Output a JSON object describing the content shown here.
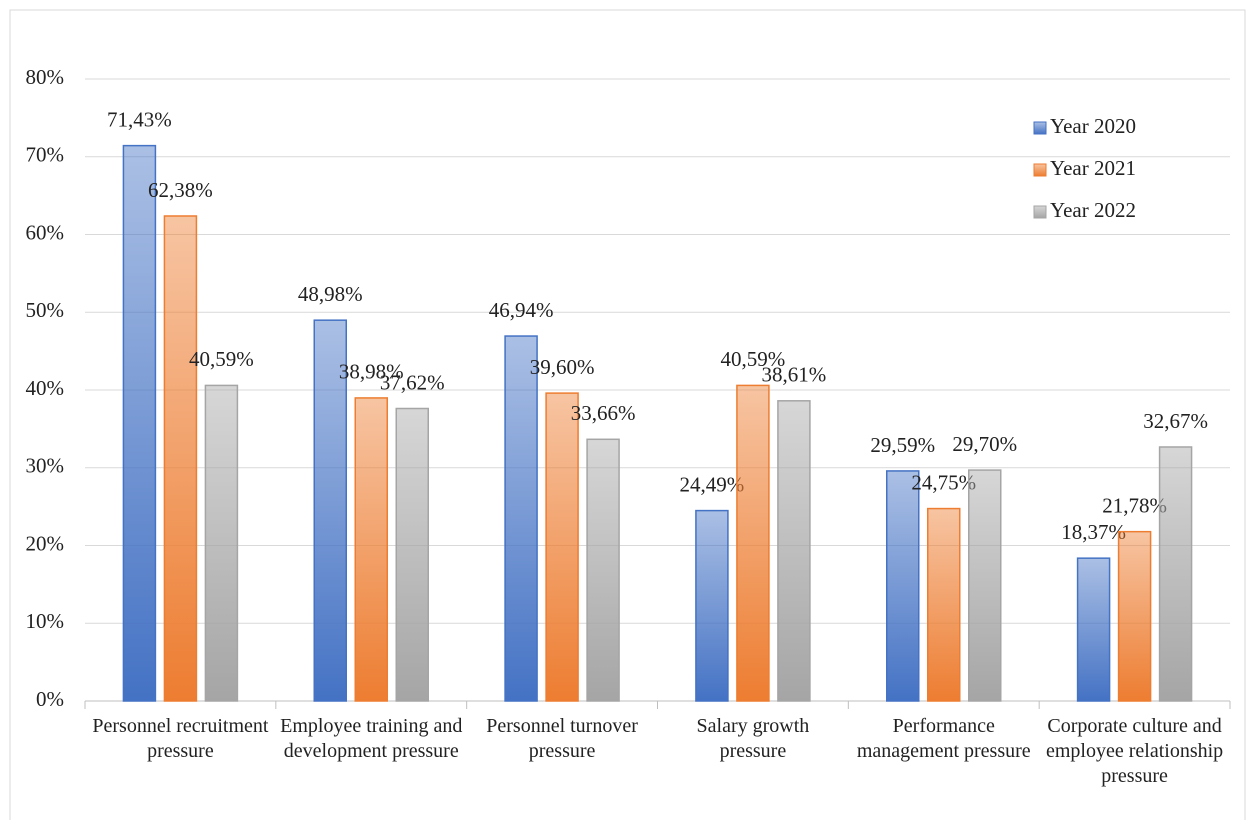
{
  "chart_data": {
    "type": "bar",
    "categories": [
      "Personnel recruitment pressure",
      "Employee training and development pressure",
      "Personnel turnover pressure",
      "Salary growth pressure",
      "Performance management pressure",
      "Corporate culture and employee relationship pressure"
    ],
    "series": [
      {
        "name": "Year 2020",
        "color": "#4472c4",
        "values": [
          71.43,
          48.98,
          46.94,
          24.49,
          29.59,
          18.37
        ],
        "value_labels": [
          "71,43%",
          "48,98%",
          "46,94%",
          "24,49%",
          "29,59%",
          "18,37%"
        ]
      },
      {
        "name": "Year 2021",
        "color": "#ed7d31",
        "values": [
          62.38,
          38.98,
          39.6,
          40.59,
          24.75,
          21.78
        ],
        "value_labels": [
          "62,38%",
          "38,98%",
          "39,60%",
          "40,59%",
          "24,75%",
          "21,78%"
        ]
      },
      {
        "name": "Year 2022",
        "color": "#a5a5a5",
        "values": [
          40.59,
          37.62,
          33.66,
          38.61,
          29.7,
          32.67
        ],
        "value_labels": [
          "40,59%",
          "37,62%",
          "33,66%",
          "38,61%",
          "29,70%",
          "32,67%"
        ]
      }
    ],
    "ylim": [
      0,
      80
    ],
    "yticks": [
      {
        "value": 0,
        "label": "0%"
      },
      {
        "value": 10,
        "label": "10%"
      },
      {
        "value": 20,
        "label": "20%"
      },
      {
        "value": 30,
        "label": "30%"
      },
      {
        "value": 40,
        "label": "40%"
      },
      {
        "value": 50,
        "label": "50%"
      },
      {
        "value": 60,
        "label": "60%"
      },
      {
        "value": 70,
        "label": "70%"
      },
      {
        "value": 80,
        "label": "80%"
      }
    ],
    "grid": true,
    "legend": "upper right"
  }
}
